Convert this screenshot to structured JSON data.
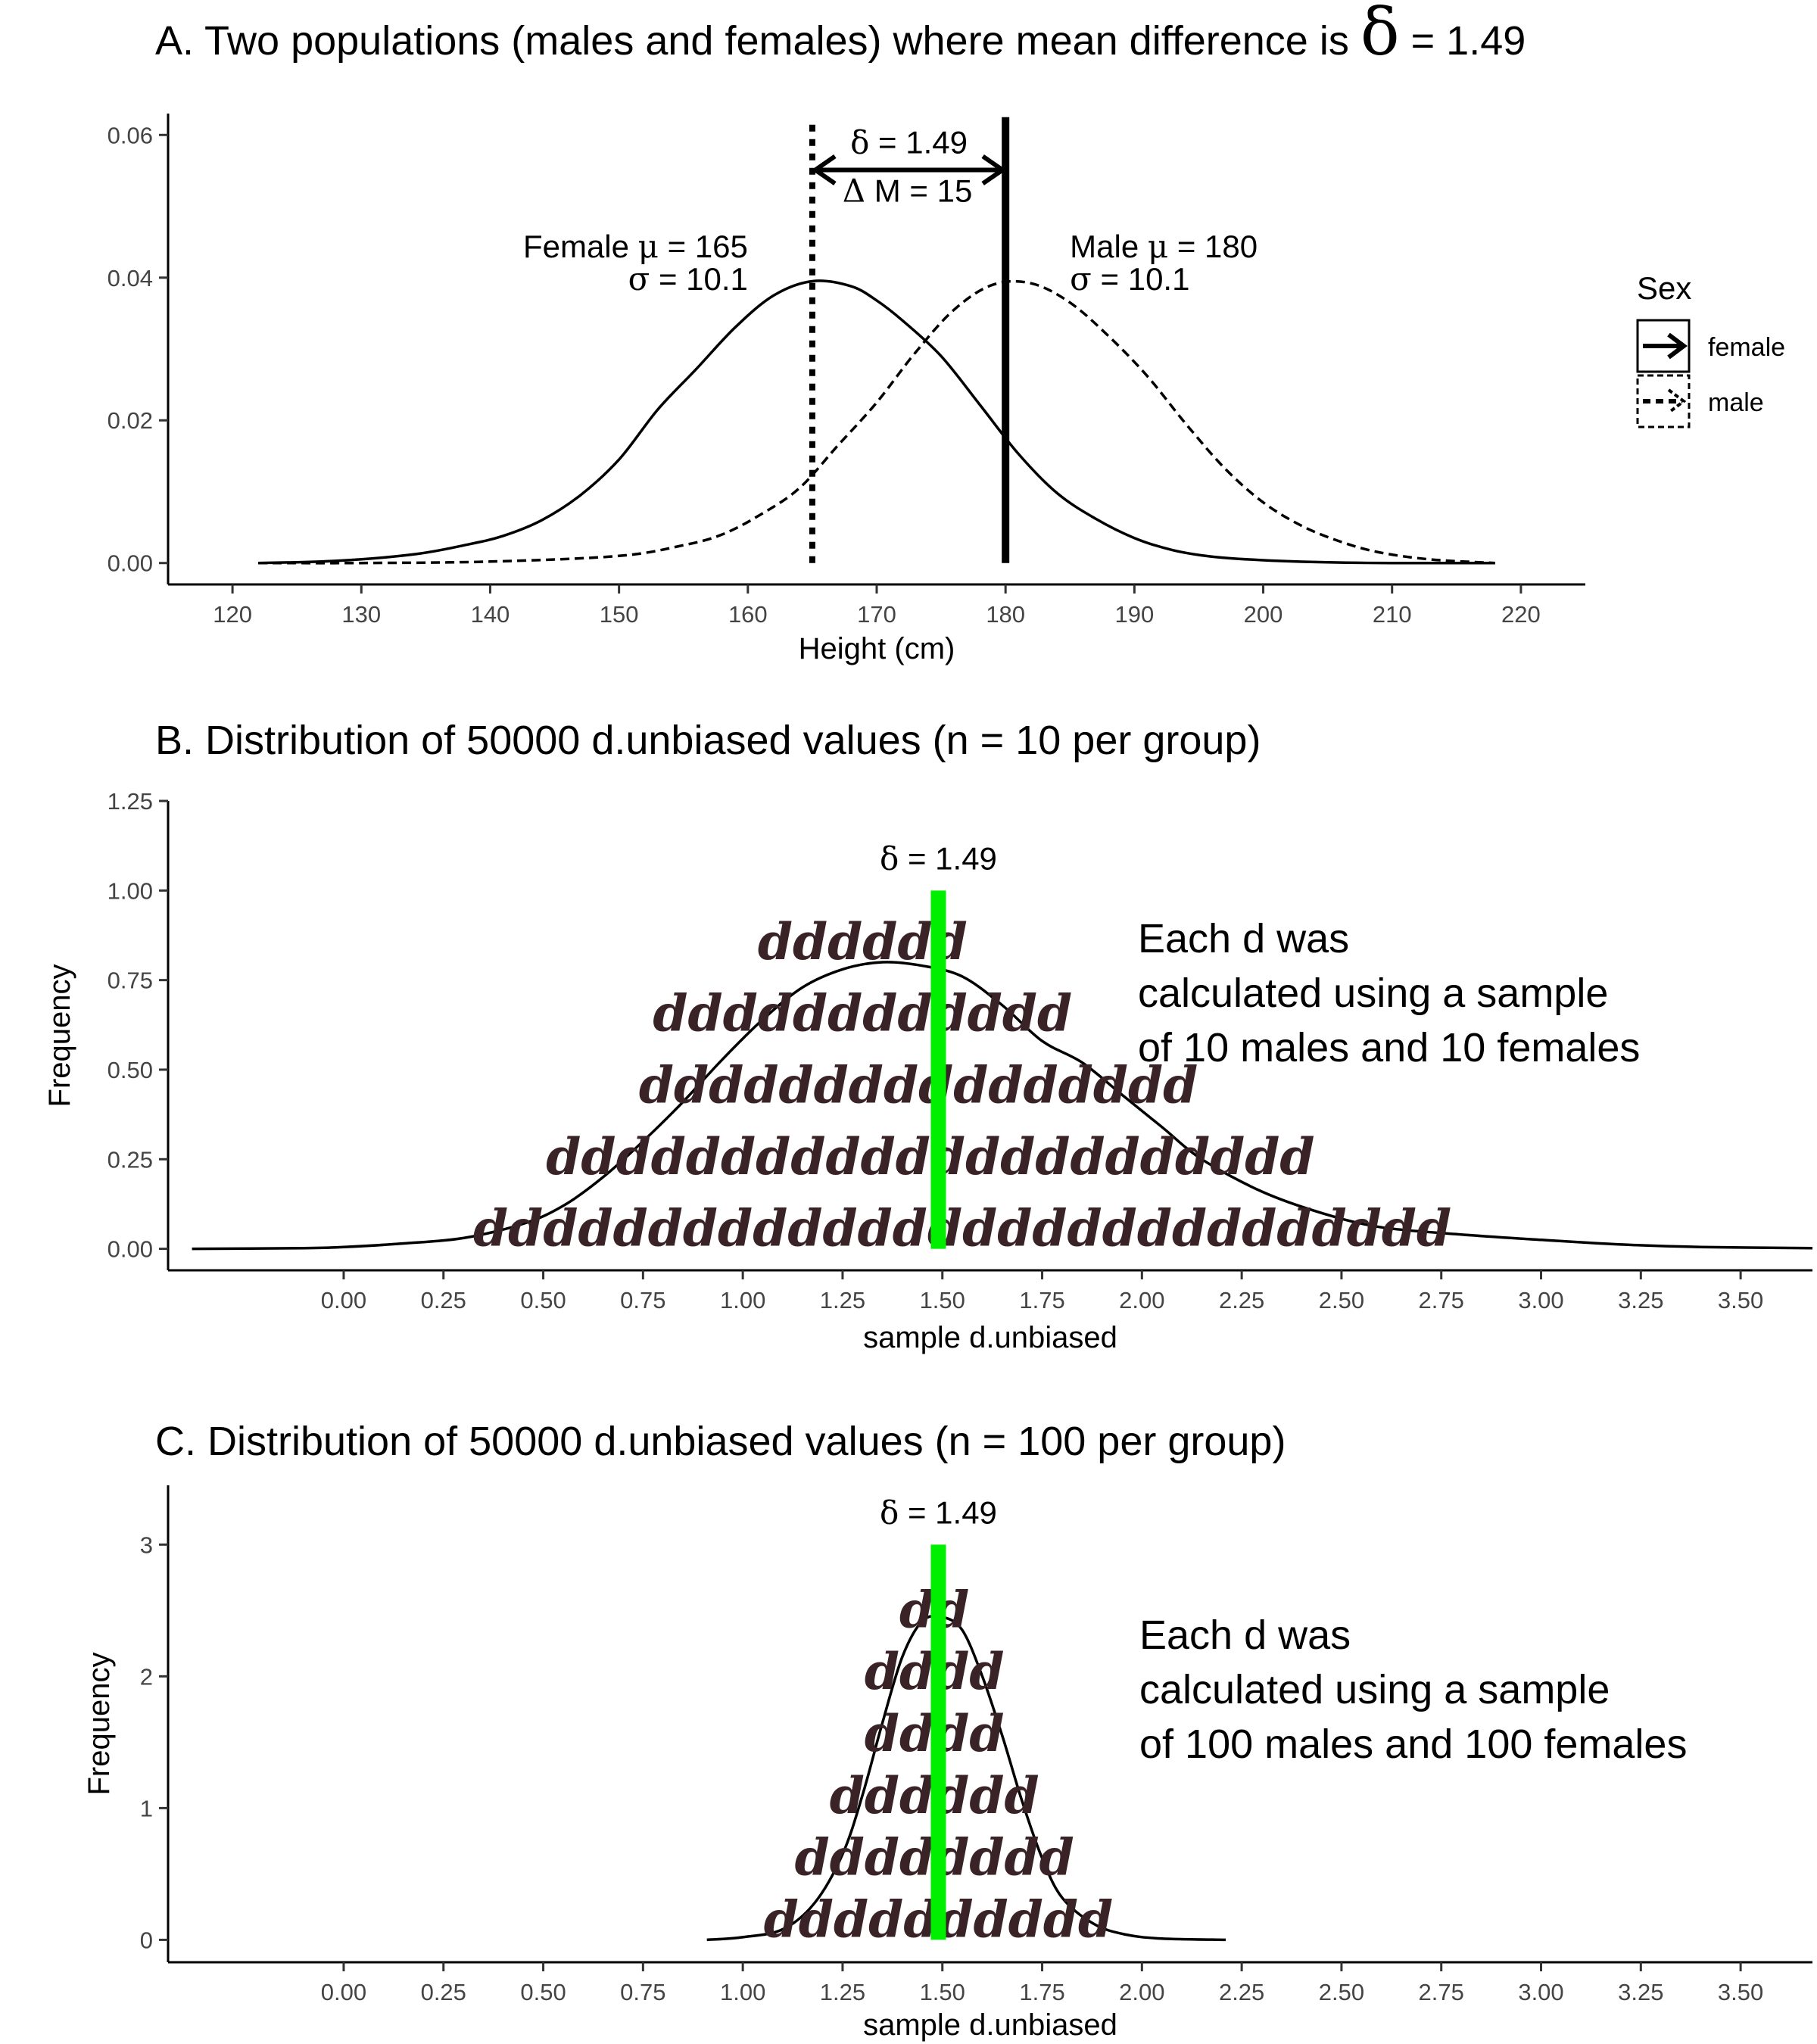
{
  "chart_data": [
    {
      "id": "A",
      "type": "line",
      "title_prefix": "A. Two populations (males and females) where mean difference is ",
      "title_symbol": "δ",
      "title_suffix": " = 1.49",
      "xlabel": "Height (cm)",
      "ylabel": "",
      "xlim": [
        115,
        225
      ],
      "ylim": [
        -0.003,
        0.063
      ],
      "xticks": [
        120,
        130,
        140,
        150,
        160,
        170,
        180,
        190,
        200,
        210,
        220
      ],
      "yticks": [
        0.0,
        0.02,
        0.04,
        0.06
      ],
      "ytick_labels": [
        "0.00",
        "0.02",
        "0.04",
        "0.06"
      ],
      "series": [
        {
          "name": "female",
          "line": "solid",
          "mean": 165,
          "sd": 10.1,
          "x": [
            122,
            128,
            134,
            138,
            141,
            144,
            147,
            150,
            153,
            156,
            159,
            162,
            165,
            168,
            170,
            172,
            175,
            178,
            181,
            184,
            187,
            190,
            193,
            196,
            200,
            205,
            210,
            218
          ],
          "y": [
            0.0,
            0.0003,
            0.0012,
            0.0025,
            0.0038,
            0.006,
            0.0095,
            0.0145,
            0.0215,
            0.0272,
            0.033,
            0.0375,
            0.0395,
            0.0388,
            0.0368,
            0.034,
            0.029,
            0.0222,
            0.0153,
            0.0098,
            0.0062,
            0.0035,
            0.0018,
            0.0009,
            0.0004,
            0.0001,
            0.0,
            0.0
          ]
        },
        {
          "name": "male",
          "line": "dashed",
          "mean": 180,
          "sd": 10.1,
          "x": [
            122,
            130,
            140,
            150,
            155,
            158,
            161,
            164,
            167,
            170,
            173,
            176,
            179,
            182,
            185,
            188,
            191,
            194,
            197,
            200,
            203,
            206,
            209,
            213,
            218
          ],
          "y": [
            0.0,
            0.0,
            0.0002,
            0.001,
            0.0025,
            0.004,
            0.0068,
            0.0105,
            0.0165,
            0.0225,
            0.0295,
            0.0355,
            0.039,
            0.0392,
            0.0365,
            0.0318,
            0.0262,
            0.0195,
            0.0133,
            0.0085,
            0.0052,
            0.003,
            0.0015,
            0.0005,
            0.0
          ]
        }
      ],
      "vlines": [
        {
          "x": 165,
          "style": "dotted"
        },
        {
          "x": 180,
          "style": "solid"
        }
      ],
      "arrow": {
        "x_start": 165,
        "x_end": 180,
        "y": 0.0551
      },
      "annotations": {
        "delta_label": {
          "symbol": "δ",
          "text": " = 1.49"
        },
        "dm_label": {
          "symbol": "Δ",
          "text": " M = 15"
        },
        "female_line1": {
          "text1": "Female ",
          "symbol": "μ",
          "text2": " = 165"
        },
        "female_line2": {
          "symbol": "σ",
          "text": " = 10.1"
        },
        "male_line1": {
          "text1": "Male ",
          "symbol": "μ",
          "text2": " = 180"
        },
        "male_line2": {
          "symbol": "σ",
          "text": " = 10.1"
        }
      },
      "legend": {
        "title": "Sex",
        "placement": "right",
        "entries": [
          "female",
          "male"
        ]
      }
    },
    {
      "id": "B",
      "type": "area",
      "title": "B. Distribution of 50000 d.unbiased values (n = 10 per group)",
      "xlabel": "sample d.unbiased",
      "ylabel": "Frequency",
      "xlim": [
        -0.44,
        3.68
      ],
      "ylim": [
        -0.06,
        1.25
      ],
      "xticks": [
        0,
        0.25,
        0.5,
        0.75,
        1.0,
        1.25,
        1.5,
        1.75,
        2.0,
        2.25,
        2.5,
        2.75,
        3.0,
        3.25,
        3.5
      ],
      "xtick_labels": [
        "0.00",
        "0.25",
        "0.50",
        "0.75",
        "1.00",
        "1.25",
        "1.50",
        "1.75",
        "2.00",
        "2.25",
        "2.50",
        "2.75",
        "3.00",
        "3.25",
        "3.50"
      ],
      "yticks": [
        0,
        0.25,
        0.5,
        0.75,
        1.0,
        1.25
      ],
      "ytick_labels": [
        "0.00",
        "0.25",
        "0.50",
        "0.75",
        "1.00",
        "1.25"
      ],
      "density": {
        "x": [
          -0.38,
          -0.1,
          0.0,
          0.15,
          0.3,
          0.45,
          0.55,
          0.65,
          0.75,
          0.85,
          0.95,
          1.05,
          1.15,
          1.25,
          1.35,
          1.45,
          1.55,
          1.65,
          1.75,
          1.85,
          1.95,
          2.05,
          2.15,
          2.3,
          2.45,
          2.6,
          2.8,
          3.0,
          3.2,
          3.4,
          3.68
        ],
        "y": [
          0.0,
          0.002,
          0.005,
          0.015,
          0.03,
          0.07,
          0.12,
          0.2,
          0.3,
          0.41,
          0.53,
          0.64,
          0.73,
          0.78,
          0.8,
          0.79,
          0.76,
          0.68,
          0.58,
          0.52,
          0.43,
          0.34,
          0.25,
          0.16,
          0.1,
          0.06,
          0.04,
          0.025,
          0.012,
          0.005,
          0.002
        ]
      },
      "delta_line": {
        "x": 1.49,
        "y_top": 1.0,
        "color": "#00ee00"
      },
      "delta_label": {
        "symbol": "δ",
        "text": " = 1.49"
      },
      "d_rows": [
        {
          "text": "dddddddddddddddddddddddddddd",
          "x_center": 1.55,
          "y": 0.0
        },
        {
          "text": "dddddddddddddddddddddd",
          "x_center": 1.47,
          "y": 0.2
        },
        {
          "text": "dddddddddddddddd",
          "x_center": 1.44,
          "y": 0.4
        },
        {
          "text": "dddddddddddd",
          "x_center": 1.3,
          "y": 0.6
        },
        {
          "text": "dddddd",
          "x_center": 1.3,
          "y": 0.8
        }
      ],
      "note": [
        "Each d was",
        "calculated using a sample",
        "of 10 males and 10 females"
      ]
    },
    {
      "id": "C",
      "type": "area",
      "title": "C. Distribution of 50000 d.unbiased values (n = 100 per group)",
      "xlabel": "sample d.unbiased",
      "ylabel": "Frequency",
      "xlim": [
        -0.44,
        3.68
      ],
      "ylim": [
        -0.17,
        3.45
      ],
      "xticks": [
        0,
        0.25,
        0.5,
        0.75,
        1.0,
        1.25,
        1.5,
        1.75,
        2.0,
        2.25,
        2.5,
        2.75,
        3.0,
        3.25,
        3.5
      ],
      "xtick_labels": [
        "0.00",
        "0.25",
        "0.50",
        "0.75",
        "1.00",
        "1.25",
        "1.50",
        "1.75",
        "2.00",
        "2.25",
        "2.50",
        "2.75",
        "3.00",
        "3.25",
        "3.50"
      ],
      "yticks": [
        0,
        1,
        2,
        3
      ],
      "ytick_labels": [
        "0",
        "1",
        "2",
        "3"
      ],
      "density": {
        "x": [
          0.91,
          1.0,
          1.1,
          1.18,
          1.25,
          1.3,
          1.35,
          1.4,
          1.45,
          1.5,
          1.55,
          1.6,
          1.65,
          1.7,
          1.75,
          1.8,
          1.88,
          1.96,
          2.05,
          2.21
        ],
        "y": [
          0.0,
          0.02,
          0.08,
          0.28,
          0.65,
          1.1,
          1.65,
          2.15,
          2.42,
          2.45,
          2.35,
          2.0,
          1.55,
          1.05,
          0.62,
          0.32,
          0.12,
          0.04,
          0.01,
          0.0
        ]
      },
      "delta_line": {
        "x": 1.49,
        "y_top": 3.0,
        "color": "#00ee00"
      },
      "delta_label": {
        "symbol": "δ",
        "text": " = 1.49"
      },
      "d_rows": [
        {
          "text": "dddddddddd",
          "x_center": 1.49,
          "y": 0.0
        },
        {
          "text": "dddddddd",
          "x_center": 1.48,
          "y": 0.47
        },
        {
          "text": "dddddd",
          "x_center": 1.48,
          "y": 0.94
        },
        {
          "text": "dddd",
          "x_center": 1.48,
          "y": 1.41
        },
        {
          "text": "dddd",
          "x_center": 1.48,
          "y": 1.88
        },
        {
          "text": "dd",
          "x_center": 1.48,
          "y": 2.35
        }
      ],
      "note": [
        "Each d was",
        "calculated using a sample",
        "of 100 males and 100 females"
      ]
    }
  ]
}
